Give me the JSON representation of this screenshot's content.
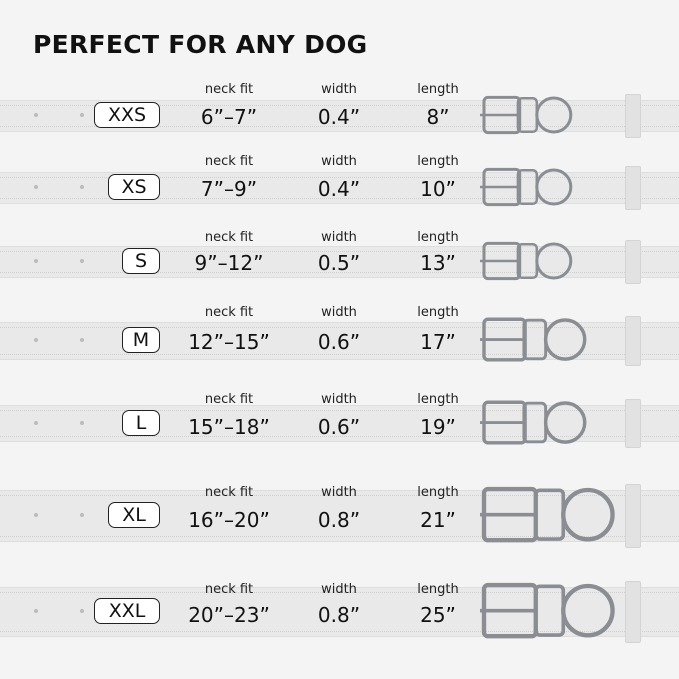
{
  "title": "PERFECT FOR ANY DOG",
  "labels": {
    "neck_fit": "neck fit",
    "width": "width",
    "length": "length"
  },
  "sizes": [
    {
      "size": "XXS",
      "neck_fit": "6”–7”",
      "width": "0.4”",
      "length": "8”"
    },
    {
      "size": "XS",
      "neck_fit": "7”–9”",
      "width": "0.4”",
      "length": "10”"
    },
    {
      "size": "S",
      "neck_fit": "9”–12”",
      "width": "0.5”",
      "length": "13”"
    },
    {
      "size": "M",
      "neck_fit": "12”–15”",
      "width": "0.6”",
      "length": "17”"
    },
    {
      "size": "L",
      "neck_fit": "15”–18”",
      "width": "0.6”",
      "length": "19”"
    },
    {
      "size": "XL",
      "neck_fit": "16”–20”",
      "width": "0.8”",
      "length": "21”"
    },
    {
      "size": "XXL",
      "neck_fit": "20”–23”",
      "width": "0.8”",
      "length": "25”"
    }
  ],
  "colors": {
    "background": "#f4f4f4",
    "strap": "#e9e9e9",
    "hardware": "#8a8d92"
  }
}
